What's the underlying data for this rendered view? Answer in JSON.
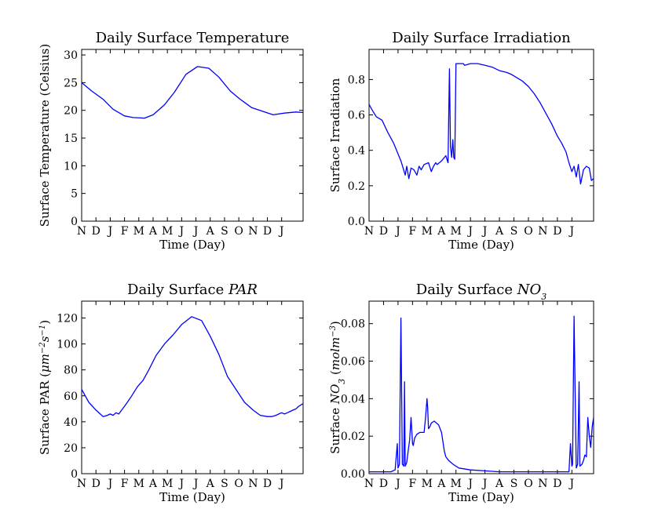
{
  "chart_data": [
    {
      "type": "line",
      "title": "Daily Surface Temperature",
      "title_parts": [
        {
          "text": "Daily Surface Temperature",
          "italic": false
        }
      ],
      "xlabel": "Time (Day)",
      "ylabel_parts": [
        {
          "text": "Surface Temperature (Celsius)",
          "italic": false
        }
      ],
      "x_tick_labels": [
        "N",
        "D",
        "J",
        "F",
        "M",
        "A",
        "M",
        "J",
        "J",
        "A",
        "S",
        "O",
        "N",
        "D",
        "J"
      ],
      "xlim": [
        0,
        15.5
      ],
      "ylim": [
        0,
        31
      ],
      "yticks": [
        0,
        5,
        10,
        15,
        20,
        25,
        30
      ],
      "ytick_labels": [
        "0",
        "5",
        "10",
        "15",
        "20",
        "25",
        "30"
      ],
      "series": [
        {
          "color": "#0000ff",
          "x": [
            0,
            0.7,
            1.5,
            2.2,
            3.0,
            3.6,
            4.4,
            5.0,
            5.8,
            6.5,
            7.3,
            8.1,
            8.9,
            9.6,
            10.4,
            11.1,
            11.9,
            12.7,
            13.4,
            14.2,
            15.0,
            15.5
          ],
          "y": [
            25.0,
            23.5,
            22.0,
            20.2,
            19.0,
            18.7,
            18.6,
            19.2,
            21.0,
            23.3,
            26.5,
            27.9,
            27.6,
            26.0,
            23.5,
            22.0,
            20.5,
            19.8,
            19.2,
            19.5,
            19.7,
            19.6
          ]
        }
      ]
    },
    {
      "type": "line",
      "title": "Daily Surface Irradiation",
      "title_parts": [
        {
          "text": "Daily Surface Irradiation",
          "italic": false
        }
      ],
      "xlabel": "Time (Day)",
      "ylabel_parts": [
        {
          "text": "Surface Irradiation",
          "italic": false
        }
      ],
      "x_tick_labels": [
        "N",
        "D",
        "J",
        "F",
        "M",
        "A",
        "M",
        "J",
        "J",
        "A",
        "S",
        "O",
        "N",
        "D",
        "J"
      ],
      "xlim": [
        0,
        15.5
      ],
      "ylim": [
        0,
        0.97
      ],
      "yticks": [
        0.0,
        0.2,
        0.4,
        0.6,
        0.8
      ],
      "ytick_labels": [
        "0.0",
        "0.2",
        "0.4",
        "0.6",
        "0.8"
      ],
      "series": [
        {
          "color": "#0000ff",
          "x": [
            0,
            0.2,
            0.5,
            0.9,
            1.3,
            1.7,
            2.0,
            2.2,
            2.35,
            2.5,
            2.6,
            2.75,
            2.9,
            3.1,
            3.3,
            3.45,
            3.6,
            3.8,
            4.1,
            4.3,
            4.45,
            4.6,
            4.7,
            5.0,
            5.3,
            5.45,
            5.55,
            5.62,
            5.7,
            5.78,
            5.85,
            5.92,
            6.0,
            6.3,
            6.5,
            6.6,
            7.0,
            7.5,
            8.0,
            8.5,
            9.0,
            9.5,
            9.8,
            10.2,
            10.6,
            11.0,
            11.4,
            11.8,
            12.2,
            12.6,
            13.0,
            13.3,
            13.6,
            13.8,
            14.0,
            14.15,
            14.3,
            14.45,
            14.6,
            14.8,
            15.0,
            15.2,
            15.35,
            15.5
          ],
          "y": [
            0.66,
            0.63,
            0.59,
            0.57,
            0.5,
            0.44,
            0.38,
            0.34,
            0.3,
            0.26,
            0.31,
            0.24,
            0.3,
            0.29,
            0.26,
            0.31,
            0.29,
            0.32,
            0.33,
            0.28,
            0.31,
            0.33,
            0.32,
            0.34,
            0.37,
            0.33,
            0.86,
            0.42,
            0.36,
            0.46,
            0.36,
            0.35,
            0.89,
            0.89,
            0.89,
            0.88,
            0.89,
            0.89,
            0.88,
            0.87,
            0.85,
            0.84,
            0.83,
            0.81,
            0.79,
            0.76,
            0.72,
            0.67,
            0.61,
            0.55,
            0.48,
            0.44,
            0.39,
            0.33,
            0.28,
            0.31,
            0.25,
            0.32,
            0.21,
            0.29,
            0.31,
            0.3,
            0.23,
            0.24
          ]
        }
      ]
    },
    {
      "type": "line",
      "title": "Daily Surface PAR",
      "title_parts": [
        {
          "text": "Daily Surface ",
          "italic": false
        },
        {
          "text": "PAR",
          "italic": true
        }
      ],
      "xlabel": "Time (Day)",
      "ylabel_parts": [
        {
          "text": "Surface PAR (",
          "italic": false
        },
        {
          "text": "μm",
          "italic": true
        },
        {
          "text": "−2",
          "italic": true,
          "sup": true
        },
        {
          "text": "s",
          "italic": true
        },
        {
          "text": "−1",
          "italic": true,
          "sup": true
        },
        {
          "text": ")",
          "italic": false
        }
      ],
      "x_tick_labels": [
        "N",
        "D",
        "J",
        "F",
        "M",
        "A",
        "M",
        "J",
        "J",
        "A",
        "S",
        "O",
        "N",
        "D",
        "J"
      ],
      "xlim": [
        0,
        15.5
      ],
      "ylim": [
        0,
        133
      ],
      "yticks": [
        0,
        20,
        40,
        60,
        80,
        100,
        120
      ],
      "ytick_labels": [
        "0",
        "20",
        "40",
        "60",
        "80",
        "100",
        "120"
      ],
      "series": [
        {
          "color": "#0000ff",
          "x": [
            0,
            0.5,
            1.0,
            1.5,
            1.8,
            2.0,
            2.2,
            2.4,
            2.6,
            2.8,
            3.0,
            3.2,
            3.5,
            3.9,
            4.3,
            4.7,
            5.2,
            5.8,
            6.4,
            7.0,
            7.7,
            8.4,
            9.0,
            9.6,
            10.2,
            10.8,
            11.4,
            12.0,
            12.5,
            13.0,
            13.3,
            13.6,
            13.8,
            14.0,
            14.2,
            14.4,
            14.6,
            14.8,
            15.0,
            15.2,
            15.5
          ],
          "y": [
            65,
            55,
            49,
            44,
            45,
            46,
            45,
            47,
            46,
            49,
            52,
            55,
            60,
            67,
            72,
            80,
            91,
            100,
            107,
            115,
            121,
            118,
            106,
            92,
            75,
            65,
            55,
            49,
            45,
            44,
            44,
            45,
            46,
            47,
            46,
            47,
            48,
            49,
            50,
            52,
            54
          ]
        }
      ]
    },
    {
      "type": "line",
      "title": "Daily Surface NO3",
      "title_parts": [
        {
          "text": "Daily Surface ",
          "italic": false
        },
        {
          "text": "NO",
          "italic": true
        },
        {
          "text": "3",
          "italic": true,
          "sub": true
        }
      ],
      "xlabel": "Time (Day)",
      "ylabel_parts": [
        {
          "text": "Surface ",
          "italic": false
        },
        {
          "text": "NO",
          "italic": true
        },
        {
          "text": "3",
          "italic": true,
          "sub": true
        },
        {
          "text": " (",
          "italic": false
        },
        {
          "text": "molm",
          "italic": true
        },
        {
          "text": "−3",
          "italic": true,
          "sup": true
        },
        {
          "text": ")",
          "italic": false
        }
      ],
      "x_tick_labels": [
        "N",
        "D",
        "J",
        "F",
        "M",
        "A",
        "M",
        "J",
        "J",
        "A",
        "S",
        "O",
        "N",
        "D",
        "J"
      ],
      "xlim": [
        0,
        15.5
      ],
      "ylim": [
        0,
        0.092
      ],
      "yticks": [
        0.0,
        0.02,
        0.04,
        0.06,
        0.08
      ],
      "ytick_labels": [
        "0.00",
        "0.02",
        "0.04",
        "0.06",
        "0.08"
      ],
      "series": [
        {
          "color": "#0000ff",
          "x": [
            0,
            0.5,
            1.0,
            1.5,
            1.8,
            1.95,
            2.0,
            2.1,
            2.2,
            2.3,
            2.4,
            2.45,
            2.5,
            2.6,
            2.7,
            2.8,
            2.9,
            3.0,
            3.05,
            3.15,
            3.3,
            3.5,
            3.8,
            3.9,
            4.0,
            4.05,
            4.1,
            4.2,
            4.3,
            4.5,
            4.8,
            5.0,
            5.2,
            5.3,
            5.5,
            5.8,
            6.2,
            7.0,
            8.0,
            9.0,
            10.0,
            11.0,
            12.0,
            12.5,
            13.0,
            13.8,
            13.9,
            14.0,
            14.05,
            14.15,
            14.3,
            14.4,
            14.5,
            14.55,
            14.7,
            14.8,
            14.9,
            15.0,
            15.1,
            15.2,
            15.3,
            15.4,
            15.5
          ],
          "y": [
            0.001,
            0.001,
            0.001,
            0.001,
            0.002,
            0.016,
            0.003,
            0.005,
            0.083,
            0.005,
            0.004,
            0.049,
            0.004,
            0.006,
            0.012,
            0.018,
            0.03,
            0.016,
            0.015,
            0.019,
            0.021,
            0.022,
            0.022,
            0.03,
            0.04,
            0.035,
            0.024,
            0.025,
            0.027,
            0.028,
            0.026,
            0.022,
            0.012,
            0.009,
            0.007,
            0.005,
            0.003,
            0.002,
            0.0015,
            0.001,
            0.001,
            0.001,
            0.001,
            0.001,
            0.001,
            0.001,
            0.016,
            0.004,
            0.005,
            0.084,
            0.003,
            0.005,
            0.049,
            0.004,
            0.005,
            0.007,
            0.01,
            0.009,
            0.03,
            0.02,
            0.014,
            0.025,
            0.03
          ]
        }
      ]
    }
  ]
}
